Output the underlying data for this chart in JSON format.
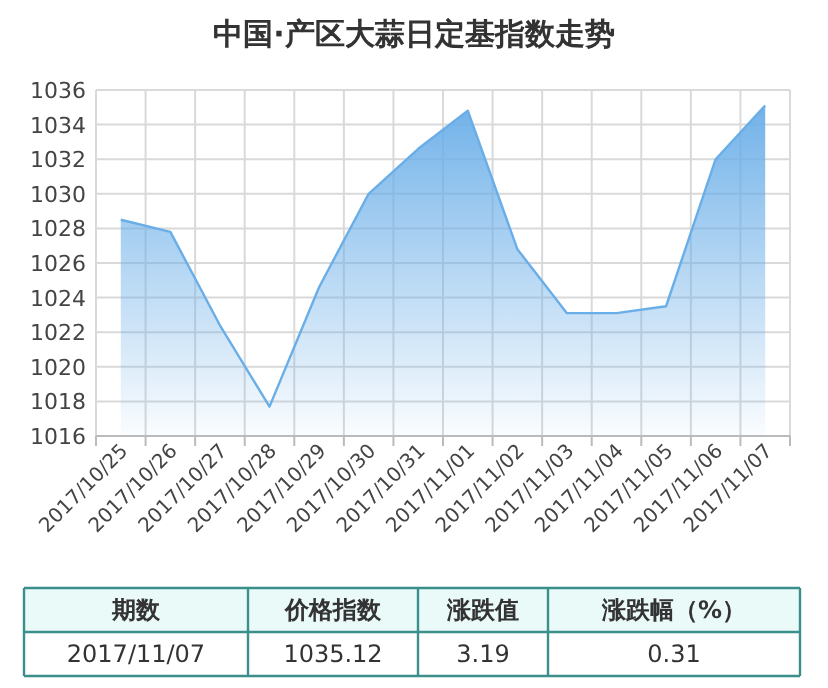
{
  "chart_data": {
    "type": "area",
    "title": "中国·产区大蒜日定基指数走势",
    "categories": [
      "2017/10/25",
      "2017/10/26",
      "2017/10/27",
      "2017/10/28",
      "2017/10/29",
      "2017/10/30",
      "2017/10/31",
      "2017/11/01",
      "2017/11/02",
      "2017/11/03",
      "2017/11/04",
      "2017/11/05",
      "2017/11/06",
      "2017/11/07"
    ],
    "series": [
      {
        "color": "#6aaee8",
        "values": [
          1028.5,
          1027.8,
          1022.4,
          1017.7,
          1024.6,
          1030.0,
          1032.6,
          1034.8,
          1026.8,
          1023.1,
          1023.1,
          1023.5,
          1032.0,
          1035.1
        ]
      }
    ],
    "ylim": [
      1016,
      1036
    ],
    "yticks": [
      1016,
      1018,
      1020,
      1022,
      1024,
      1026,
      1028,
      1030,
      1032,
      1034,
      1036
    ],
    "grid": true,
    "marker": "none",
    "annotations": [
      "期数",
      "价格指数",
      "涨跌值",
      "涨跌幅（%）",
      "2017/11/07",
      "1035.12",
      "3.19",
      "0.31"
    ]
  }
}
